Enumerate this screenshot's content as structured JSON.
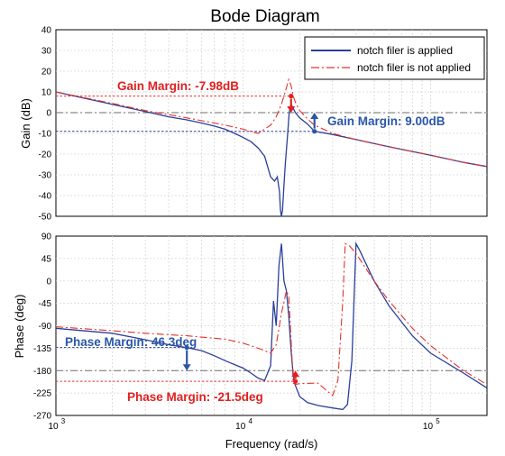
{
  "title": "Bode Diagram",
  "xlabel": "Frequency  (rad/s)",
  "colors": {
    "applied": "#2a3f9a",
    "not_applied": "#e8302a",
    "gm_applied_text": "#2a56a8",
    "pm_applied_text": "#2a56a8",
    "not_text": "#e02020"
  },
  "legend": {
    "position": "top-right",
    "applied": "notch filer is applied",
    "not_applied": "notch filer is not applied"
  },
  "chart_data": [
    {
      "type": "line",
      "name": "magnitude",
      "ylabel": "Gain  (dB)",
      "xscale": "log",
      "xlim": [
        1000,
        200000
      ],
      "ylim": [
        -50,
        40
      ],
      "yticks": [
        40,
        30,
        20,
        10,
        0,
        -10,
        -20,
        -30,
        -40,
        -50
      ],
      "xtick_labels": [
        "10",
        "10",
        "10"
      ],
      "xtick_exps": [
        "3",
        "4",
        "5"
      ],
      "grid": true,
      "series": [
        {
          "name": "notch filer is applied",
          "style": "solid",
          "x": [
            1000,
            1500,
            2000,
            3000,
            4000,
            5000,
            6000,
            7000,
            8000,
            9000,
            10000,
            11000,
            12000,
            13000,
            14000,
            14700,
            15200,
            15600,
            15800,
            16000,
            16200,
            16500,
            16800,
            17200,
            17600,
            18000,
            18500,
            19000,
            20000,
            22000,
            24000,
            30000,
            40000,
            60000,
            100000,
            150000,
            200000
          ],
          "y": [
            10,
            6.5,
            4,
            0.5,
            -2,
            -3.5,
            -5,
            -6.5,
            -8,
            -10,
            -12,
            -14,
            -17,
            -21,
            -31,
            -33,
            -31,
            -38,
            -47,
            -55,
            -47,
            -35,
            -24,
            -12,
            0,
            4,
            2,
            0,
            -2.5,
            -5.5,
            -9,
            -10.5,
            -13,
            -16.5,
            -20.5,
            -24,
            -26
          ]
        },
        {
          "name": "notch filer is not applied",
          "style": "dashdot",
          "x": [
            1000,
            2000,
            3000,
            5000,
            8000,
            10000,
            12000,
            14000,
            15000,
            16000,
            17000,
            17500,
            18000,
            18500,
            19000,
            20000,
            22000,
            24000,
            30000,
            40000,
            60000,
            100000,
            150000,
            200000
          ],
          "y": [
            10,
            4.5,
            1,
            -2.5,
            -6,
            -8,
            -10,
            -6,
            -2,
            4,
            12,
            16,
            13,
            8,
            5,
            1,
            -3,
            -6,
            -10,
            -13,
            -16.5,
            -20.5,
            -24,
            -26
          ]
        }
      ],
      "reference_lines": [
        {
          "y": 0,
          "style": "dashdot",
          "color": "gray"
        },
        {
          "y": 7.98,
          "style": "dashed",
          "color": "red",
          "x_to": 18000
        },
        {
          "y": -9.0,
          "style": "dashed",
          "color": "blue",
          "x_to": 24000
        }
      ],
      "annotations": [
        {
          "text": "Gain Margin: -7.98dB",
          "color": "red",
          "x": 18000,
          "y_from": 7.98,
          "y_to": 0
        },
        {
          "text": "Gain Margin: 9.00dB",
          "color": "blue",
          "x": 24000,
          "y_from": -9.0,
          "y_to": 0
        }
      ]
    },
    {
      "type": "line",
      "name": "phase",
      "ylabel": "Phase  (deg)",
      "xscale": "log",
      "xlim": [
        1000,
        200000
      ],
      "ylim": [
        -270,
        90
      ],
      "yticks": [
        90,
        45,
        0,
        -45,
        -90,
        -135,
        -180,
        -225,
        -270
      ],
      "xtick_labels": [
        "10",
        "10",
        "10"
      ],
      "xtick_exps": [
        "3",
        "4",
        "5"
      ],
      "grid": true,
      "series": [
        {
          "name": "notch filer is applied",
          "style": "solid",
          "x": [
            1000,
            2000,
            3000,
            4000,
            5000,
            6000,
            7000,
            8000,
            9000,
            10000,
            11000,
            12000,
            13000,
            14000,
            14500,
            15000,
            15500,
            16000,
            16500,
            17000,
            17500,
            18000,
            18500,
            19000,
            20000,
            22000,
            25000,
            30000,
            34000,
            36000,
            38000,
            40000,
            42000,
            50000,
            60000,
            80000,
            100000,
            150000,
            200000
          ],
          "y": [
            -95,
            -105,
            -118,
            -128,
            -134,
            -140,
            -150,
            -160,
            -168,
            -175,
            -185,
            -195,
            -200,
            -170,
            -40,
            -90,
            30,
            75,
            0,
            -20,
            -70,
            -140,
            -190,
            -210,
            -232,
            -244,
            -250,
            -255,
            -258,
            -248,
            -160,
            75,
            60,
            0,
            -50,
            -110,
            -145,
            -185,
            -215
          ]
        },
        {
          "name": "notch filer is not applied",
          "style": "dashdot",
          "x": [
            1000,
            2000,
            3000,
            5000,
            8000,
            10000,
            12000,
            13000,
            14000,
            15000,
            16000,
            17000,
            17500,
            18000,
            18500,
            19000,
            20000,
            25000,
            30000,
            32000,
            34000,
            35000,
            37000,
            40000,
            50000,
            60000,
            80000,
            100000,
            150000,
            200000
          ],
          "y": [
            -92,
            -100,
            -105,
            -110,
            -117,
            -125,
            -135,
            -140,
            -145,
            -128,
            -65,
            -20,
            -30,
            -120,
            -205,
            -208,
            -206,
            -205,
            -230,
            -200,
            -40,
            75,
            70,
            55,
            0,
            -40,
            -95,
            -130,
            -180,
            -208
          ]
        }
      ],
      "reference_lines": [
        {
          "y": -180,
          "style": "dashdot",
          "color": "gray"
        },
        {
          "y": -133.7,
          "style": "dashed",
          "color": "blue",
          "x_to": 5000
        },
        {
          "y": -201.5,
          "style": "dashed",
          "color": "red",
          "x_to": 19000
        }
      ],
      "annotations": [
        {
          "text": "Phase Margin: 46.3deg",
          "color": "blue",
          "x": 5000,
          "y_from": -133.7,
          "y_to": -180
        },
        {
          "text": "Phase Margin: -21.5deg",
          "color": "red",
          "x": 19000,
          "y_from": -201.5,
          "y_to": -180
        }
      ]
    }
  ]
}
